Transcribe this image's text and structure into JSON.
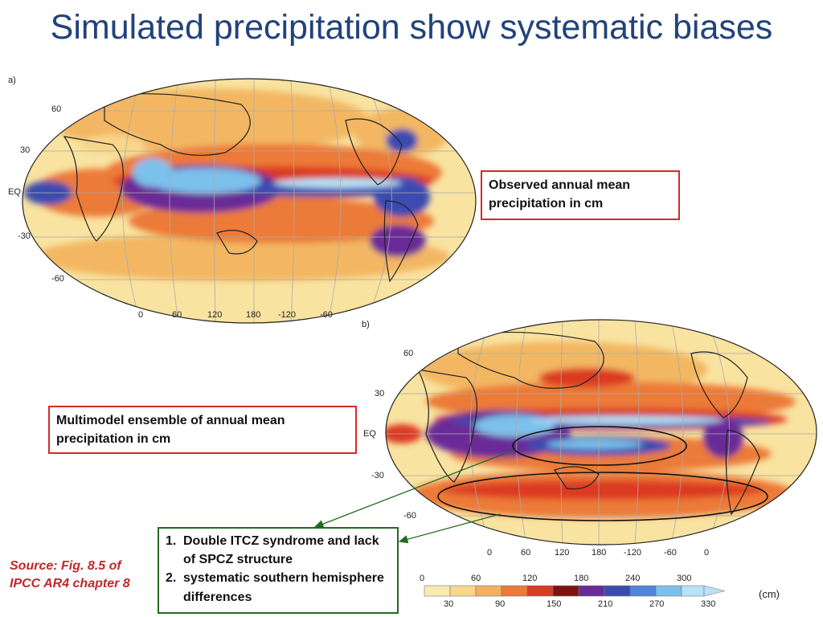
{
  "slide": {
    "title": "Simulated precipitation show systematic biases"
  },
  "map_a": {
    "label": "a)",
    "lat_labels": [
      "60",
      "30",
      "EQ",
      "-30",
      "-60"
    ],
    "lon_labels": [
      "0",
      "60",
      "120",
      "180",
      "-120",
      "-60"
    ],
    "callout": "Observed annual mean precipitation in cm"
  },
  "map_b": {
    "label": "b)",
    "lat_labels": [
      "60",
      "30",
      "EQ",
      "-30",
      "-60"
    ],
    "lon_labels": [
      "0",
      "60",
      "120",
      "180",
      "-120",
      "-60",
      "0"
    ],
    "callout": "Multimodel ensemble of annual mean precipitation in cm"
  },
  "bias_notes": [
    {
      "num": "1.",
      "text": "Double ITCZ syndrome and lack of SPCZ structure"
    },
    {
      "num": "2.",
      "text": "systematic southern hemisphere differences"
    }
  ],
  "source": "Source: Fig. 8.5 of IPCC AR4 chapter 8",
  "colorbar": {
    "unit": "(cm)",
    "top_ticks": [
      "0",
      "60",
      "120",
      "180",
      "240",
      "300"
    ],
    "bottom_ticks": [
      "30",
      "90",
      "150",
      "210",
      "270",
      "330"
    ],
    "colors": [
      "#fbeab0",
      "#f8d68c",
      "#f4b060",
      "#ec7a38",
      "#dc3a22",
      "#7e1210",
      "#6a2a98",
      "#3a4cb0",
      "#4f86d8",
      "#7bc0ec",
      "#b8e2f6"
    ]
  }
}
